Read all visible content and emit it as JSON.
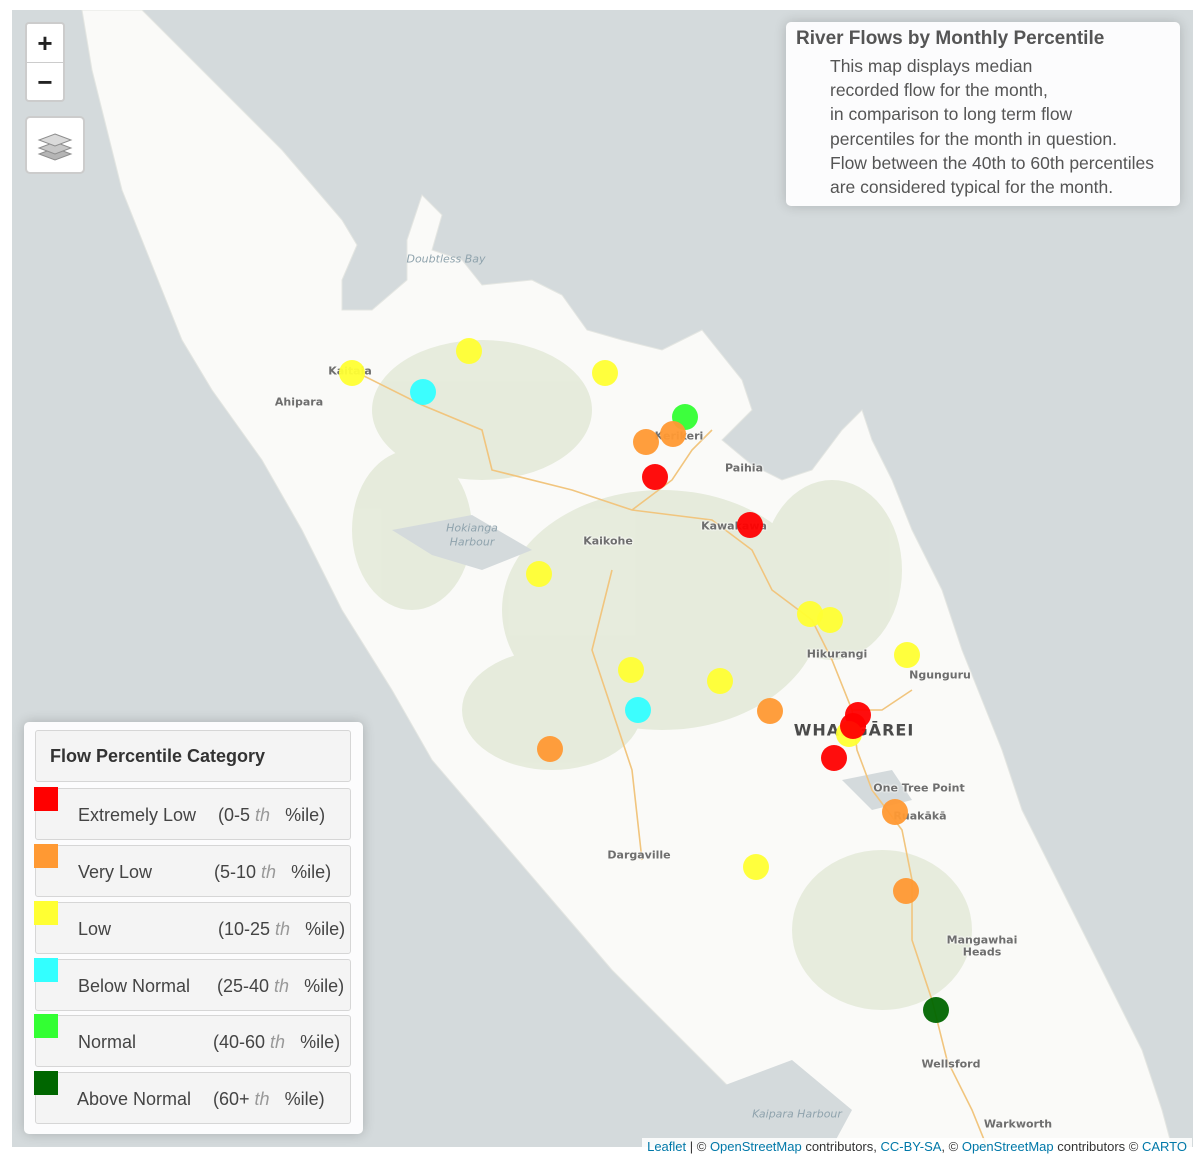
{
  "map": {
    "zoom_in_label": "+",
    "zoom_out_label": "−",
    "colors": {
      "water": "#d4dadc",
      "land": "#fafaf8",
      "green": "#e6ecdc",
      "road": "#f1c57e"
    },
    "places": [
      {
        "name": "Doubtless Bay",
        "kind": "water"
      },
      {
        "name": "Kaitaia",
        "kind": "town"
      },
      {
        "name": "Ahipara",
        "kind": "town"
      },
      {
        "name": "Kerikeri",
        "kind": "town"
      },
      {
        "name": "Paihia",
        "kind": "town"
      },
      {
        "name": "Kawakawa",
        "kind": "town"
      },
      {
        "name": "Kaikohe",
        "kind": "town"
      },
      {
        "name": "Hokianga",
        "kind": "water"
      },
      {
        "name": "Harbour",
        "kind": "water"
      },
      {
        "name": "Hikurangi",
        "kind": "town"
      },
      {
        "name": "Ngunguru",
        "kind": "town"
      },
      {
        "name": "WHANGĀREI",
        "kind": "city"
      },
      {
        "name": "One Tree Point",
        "kind": "town"
      },
      {
        "name": "Ruakākā",
        "kind": "town"
      },
      {
        "name": "Dargaville",
        "kind": "town"
      },
      {
        "name": "Mangawhai",
        "kind": "town"
      },
      {
        "name": "Heads",
        "kind": "town"
      },
      {
        "name": "Wellsford",
        "kind": "town"
      },
      {
        "name": "Kaipara Harbour",
        "kind": "water"
      },
      {
        "name": "Warkworth",
        "kind": "town"
      }
    ],
    "stations": [
      {
        "category": "low"
      },
      {
        "category": "low"
      },
      {
        "category": "below_normal"
      },
      {
        "category": "low"
      },
      {
        "category": "normal"
      },
      {
        "category": "very_low"
      },
      {
        "category": "very_low"
      },
      {
        "category": "extremely_low"
      },
      {
        "category": "extremely_low"
      },
      {
        "category": "low"
      },
      {
        "category": "low"
      },
      {
        "category": "low"
      },
      {
        "category": "low"
      },
      {
        "category": "low"
      },
      {
        "category": "low"
      },
      {
        "category": "below_normal"
      },
      {
        "category": "very_low"
      },
      {
        "category": "very_low"
      },
      {
        "category": "extremely_low"
      },
      {
        "category": "low"
      },
      {
        "category": "extremely_low"
      },
      {
        "category": "extremely_low"
      },
      {
        "category": "very_low"
      },
      {
        "category": "low"
      },
      {
        "category": "very_low"
      },
      {
        "category": "above_normal"
      }
    ]
  },
  "info": {
    "title": "River Flows by Monthly Percentile",
    "lines": [
      "This map displays median",
      "recorded flow for the month,",
      "in comparison to long term flow",
      "percentiles for the month in question.",
      "Flow between the 40th to 60th percentiles",
      "are considered typical for the month."
    ]
  },
  "legend": {
    "title": "Flow Percentile Category",
    "items": [
      {
        "key": "extremely_low",
        "label": "Extremely Low",
        "range_start": "(0-5",
        "suffix": "th",
        "unit": "%ile)",
        "color": "#ff0000"
      },
      {
        "key": "very_low",
        "label": "Very Low",
        "range_start": "(5-10",
        "suffix": "th",
        "unit": "%ile)",
        "color": "#ff9933"
      },
      {
        "key": "low",
        "label": "Low",
        "range_start": "(10-25",
        "suffix": "th",
        "unit": "%ile)",
        "color": "#ffff33"
      },
      {
        "key": "below_normal",
        "label": "Below Normal",
        "range_start": "(25-40",
        "suffix": "th",
        "unit": "%ile)",
        "color": "#33ffff"
      },
      {
        "key": "normal",
        "label": "Normal",
        "range_start": "(40-60",
        "suffix": "th",
        "unit": "%ile)",
        "color": "#33ff33"
      },
      {
        "key": "above_normal",
        "label": "Above Normal",
        "range_start": "(60+",
        "suffix": "th",
        "unit": "%ile)",
        "color": "#006600"
      }
    ]
  },
  "attribution": {
    "leaflet": "Leaflet",
    "sep1": " | © ",
    "osm1": "OpenStreetMap",
    "contrib1": " contributors, ",
    "ccbysa": "CC-BY-SA",
    "sep2": ", © ",
    "osm2": "OpenStreetMap",
    "contrib2": " contributors © ",
    "carto": "CARTO"
  }
}
